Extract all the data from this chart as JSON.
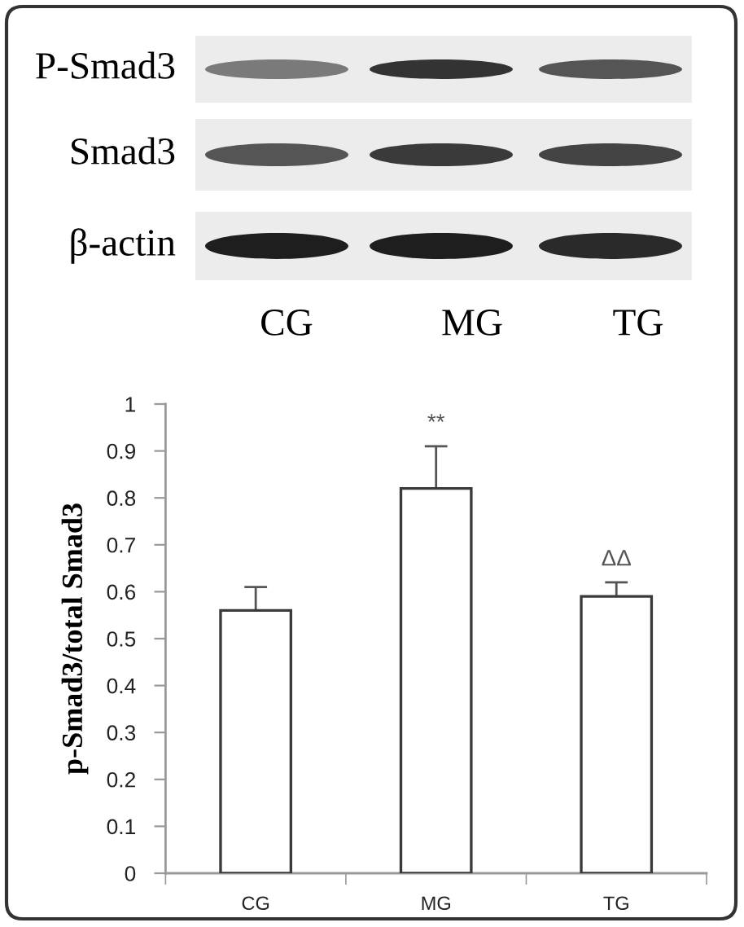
{
  "chart_data": {
    "type": "bar",
    "ylabel": "p-Smad3/total Smad3",
    "categories": [
      "CG",
      "MG",
      "TG"
    ],
    "values": [
      0.56,
      0.82,
      0.59
    ],
    "errors": [
      0.05,
      0.09,
      0.03
    ],
    "color": "#ffffff",
    "ylim": [
      0,
      1
    ],
    "yticks": [
      0,
      0.1,
      0.2,
      0.3,
      0.4,
      0.5,
      0.6,
      0.7,
      0.8,
      0.9,
      1
    ],
    "annotations": [
      "**",
      "ΔΔ",
      "P-Smad3",
      "Smad3",
      "β-actin",
      "CG",
      "MG",
      "TG"
    ]
  }
}
